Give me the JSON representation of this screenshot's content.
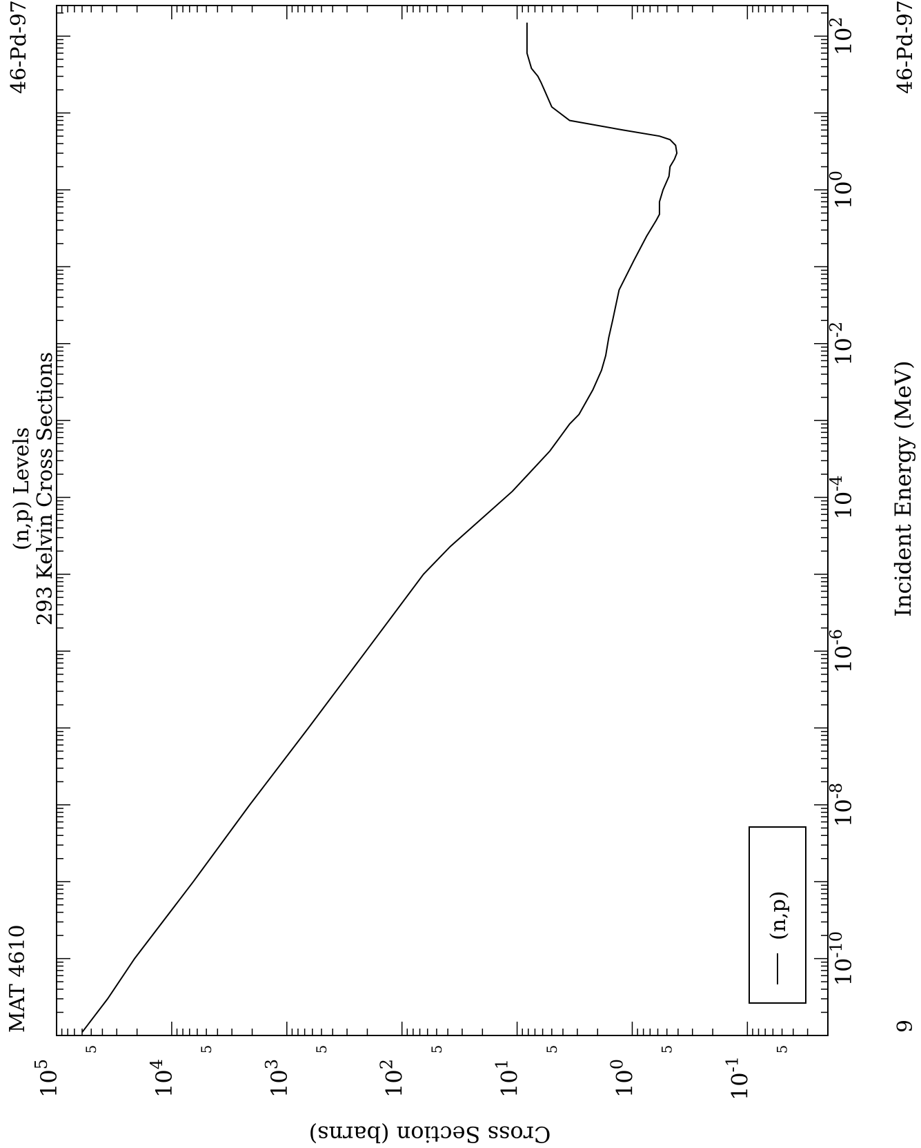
{
  "header": {
    "mat": "MAT 4610",
    "title": "(n,p) Levels",
    "subtitle": "293 Kelvin Cross Sections",
    "material_top": "46-Pd-97",
    "material_bottom": "46-Pd-97",
    "corner_label": "9"
  },
  "legend": {
    "entries": [
      "(n,p)"
    ],
    "placement": "lower-left (rotated view)"
  },
  "colors": {
    "line": "#000000",
    "background": "#ffffff"
  },
  "chart_data": {
    "type": "line",
    "orientation": "rotated 90 degrees clockwise",
    "xlabel": "Incident Energy (MeV)",
    "ylabel": "Cross Section (barns)",
    "xscale": "log",
    "yscale": "log",
    "xlim": [
      1e-11,
      250
    ],
    "ylim": [
      0.02,
      100000
    ],
    "x_major_ticks": [
      {
        "value": 1e-10,
        "mantissa": "10",
        "exponent": "-10"
      },
      {
        "value": 1e-08,
        "mantissa": "10",
        "exponent": "-8"
      },
      {
        "value": 1e-06,
        "mantissa": "10",
        "exponent": "-6"
      },
      {
        "value": 0.0001,
        "mantissa": "10",
        "exponent": "-4"
      },
      {
        "value": 0.01,
        "mantissa": "10",
        "exponent": "-2"
      },
      {
        "value": 1,
        "mantissa": "10",
        "exponent": "0"
      },
      {
        "value": 100,
        "mantissa": "10",
        "exponent": "2"
      }
    ],
    "y_major_ticks": [
      {
        "value": 0.1,
        "mantissa": "10",
        "exponent": "-1"
      },
      {
        "value": 1,
        "mantissa": "10",
        "exponent": "0"
      },
      {
        "value": 10,
        "mantissa": "10",
        "exponent": "1"
      },
      {
        "value": 100,
        "mantissa": "10",
        "exponent": "2"
      },
      {
        "value": 1000,
        "mantissa": "10",
        "exponent": "3"
      },
      {
        "value": 10000,
        "mantissa": "10",
        "exponent": "4"
      },
      {
        "value": 100000,
        "mantissa": "10",
        "exponent": "5"
      }
    ],
    "y_minor_labels": [
      {
        "value": 0.05,
        "label": "5"
      },
      {
        "value": 0.5,
        "label": "5"
      },
      {
        "value": 5,
        "label": "5"
      },
      {
        "value": 50,
        "label": "5"
      },
      {
        "value": 500,
        "label": "5"
      },
      {
        "value": 5000,
        "label": "5"
      },
      {
        "value": 50000,
        "label": "5"
      }
    ],
    "series": [
      {
        "name": "(n,p)",
        "x": [
          1.1e-11,
          3e-11,
          1e-10,
          1e-09,
          1e-08,
          1e-07,
          1e-06,
          1e-05,
          2.3e-05,
          0.00012,
          0.0004,
          0.0009,
          0.0012,
          0.0025,
          0.0045,
          0.007,
          0.012,
          0.02,
          0.05,
          0.12,
          0.25,
          0.4,
          0.48,
          0.7,
          1.0,
          1.5,
          2.0,
          2.5,
          3.0,
          3.8,
          4.5,
          5.0,
          6.0,
          8.0,
          12.0,
          20.0,
          25.0,
          30.0,
          38.0,
          60.0,
          150.0
        ],
        "y": [
          60000,
          36000,
          21000,
          6500,
          2100,
          650,
          205,
          65,
          38,
          11,
          5.2,
          3.5,
          2.9,
          2.2,
          1.85,
          1.7,
          1.6,
          1.48,
          1.3,
          0.97,
          0.75,
          0.62,
          0.58,
          0.58,
          0.54,
          0.48,
          0.47,
          0.43,
          0.41,
          0.42,
          0.47,
          0.58,
          1.2,
          3.5,
          5.0,
          5.8,
          6.2,
          6.6,
          7.5,
          8.2,
          8.2
        ]
      }
    ]
  }
}
